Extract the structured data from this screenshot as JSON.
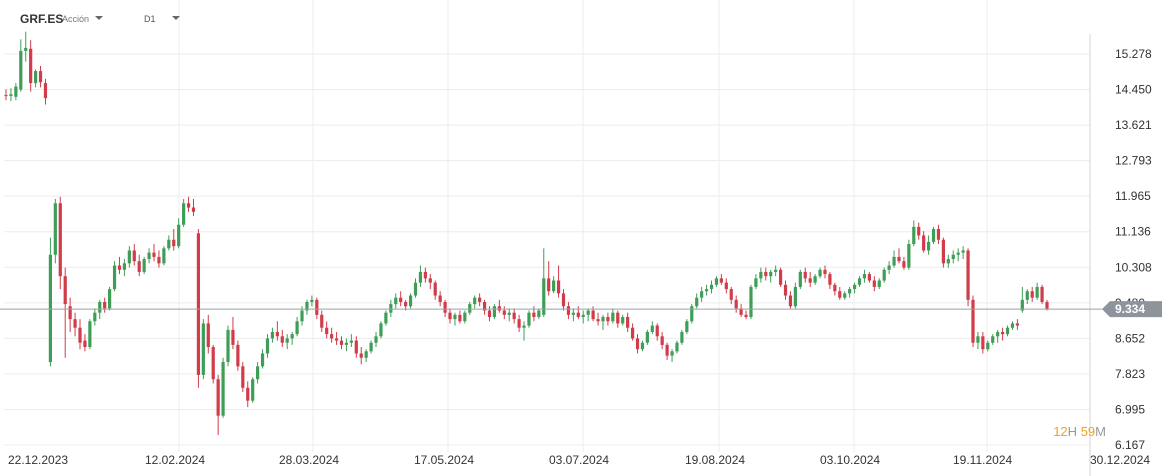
{
  "header": {
    "symbol": "GRF.ES",
    "instrument_type": "Acción",
    "timeframe": "D1"
  },
  "countdown": {
    "hours": "12",
    "hours_unit": "H",
    "minutes": "59",
    "minutes_unit": "M"
  },
  "colors": {
    "up": "#3e9e57",
    "down": "#d23b49",
    "grid": "#ececec",
    "price_line": "#9aa0a6",
    "price_label_bg": "#8d949c"
  },
  "chart_data": {
    "type": "candlestick",
    "y_ticks": [
      "15.278",
      "14.450",
      "13.621",
      "12.793",
      "11.965",
      "11.136",
      "10.308",
      "9.480",
      "8.652",
      "7.823",
      "6.995",
      "6.167"
    ],
    "ylim": [
      6.167,
      15.278
    ],
    "x_ticks": [
      "22.12.2023",
      "12.02.2024",
      "28.03.2024",
      "17.05.2024",
      "03.07.2024",
      "19.08.2024",
      "03.10.2024",
      "19.11.2024",
      "30.12.2024"
    ],
    "current_price": "9.334",
    "candles": [
      [
        14.32,
        14.45,
        14.2,
        14.3
      ],
      [
        14.3,
        14.48,
        14.18,
        14.34
      ],
      [
        14.28,
        14.6,
        14.2,
        14.52
      ],
      [
        14.45,
        15.62,
        14.4,
        15.35
      ],
      [
        15.35,
        15.8,
        15.1,
        15.42
      ],
      [
        15.4,
        15.6,
        14.4,
        14.6
      ],
      [
        14.6,
        14.92,
        14.5,
        14.88
      ],
      [
        14.88,
        15.0,
        14.5,
        14.62
      ],
      [
        14.6,
        14.7,
        14.1,
        14.25
      ],
      [
        8.1,
        11.0,
        8.0,
        10.6
      ],
      [
        10.6,
        11.9,
        10.4,
        11.8
      ],
      [
        11.8,
        11.95,
        9.8,
        10.1
      ],
      [
        10.1,
        10.3,
        8.2,
        9.45
      ],
      [
        9.4,
        9.6,
        8.8,
        9.1
      ],
      [
        9.1,
        9.25,
        8.7,
        8.9
      ],
      [
        8.9,
        9.1,
        8.4,
        8.55
      ],
      [
        8.6,
        8.75,
        8.35,
        8.45
      ],
      [
        8.45,
        9.1,
        8.4,
        9.05
      ],
      [
        9.05,
        9.35,
        8.95,
        9.25
      ],
      [
        9.25,
        9.55,
        9.1,
        9.5
      ],
      [
        9.5,
        9.6,
        9.25,
        9.35
      ],
      [
        9.35,
        9.85,
        9.3,
        9.8
      ],
      [
        9.8,
        10.45,
        9.75,
        10.35
      ],
      [
        10.35,
        10.55,
        10.15,
        10.25
      ],
      [
        10.25,
        10.5,
        10.1,
        10.4
      ],
      [
        10.4,
        10.8,
        10.3,
        10.7
      ],
      [
        10.7,
        10.85,
        10.35,
        10.45
      ],
      [
        10.45,
        10.6,
        10.1,
        10.2
      ],
      [
        10.2,
        10.55,
        10.15,
        10.5
      ],
      [
        10.5,
        10.75,
        10.4,
        10.65
      ],
      [
        10.65,
        10.85,
        10.45,
        10.55
      ],
      [
        10.55,
        10.7,
        10.3,
        10.4
      ],
      [
        10.4,
        10.8,
        10.35,
        10.75
      ],
      [
        10.75,
        11.05,
        10.7,
        10.95
      ],
      [
        10.95,
        11.2,
        10.7,
        10.8
      ],
      [
        10.8,
        11.45,
        10.75,
        11.3
      ],
      [
        11.3,
        11.9,
        11.25,
        11.8
      ],
      [
        11.8,
        11.95,
        11.6,
        11.7
      ],
      [
        11.7,
        11.9,
        11.5,
        11.6
      ],
      [
        11.1,
        11.2,
        7.5,
        7.8
      ],
      [
        7.8,
        9.1,
        7.7,
        9.0
      ],
      [
        9.0,
        9.2,
        8.3,
        8.45
      ],
      [
        8.45,
        8.5,
        7.6,
        7.7
      ],
      [
        7.7,
        7.8,
        6.4,
        6.85
      ],
      [
        6.85,
        8.2,
        6.8,
        8.1
      ],
      [
        8.1,
        8.95,
        8.0,
        8.85
      ],
      [
        8.85,
        9.15,
        8.4,
        8.5
      ],
      [
        8.5,
        8.6,
        7.9,
        8.0
      ],
      [
        8.0,
        8.1,
        7.4,
        7.5
      ],
      [
        7.5,
        7.65,
        7.05,
        7.2
      ],
      [
        7.2,
        7.75,
        7.15,
        7.7
      ],
      [
        7.7,
        8.1,
        7.6,
        8.0
      ],
      [
        8.0,
        8.4,
        7.95,
        8.3
      ],
      [
        8.3,
        8.75,
        8.2,
        8.65
      ],
      [
        8.65,
        8.9,
        8.55,
        8.8
      ],
      [
        8.8,
        9.05,
        8.6,
        8.7
      ],
      [
        8.7,
        8.85,
        8.45,
        8.55
      ],
      [
        8.55,
        8.75,
        8.4,
        8.65
      ],
      [
        8.65,
        8.8,
        8.5,
        8.75
      ],
      [
        8.75,
        9.15,
        8.7,
        9.05
      ],
      [
        9.05,
        9.4,
        8.95,
        9.3
      ],
      [
        9.3,
        9.55,
        9.2,
        9.5
      ],
      [
        9.5,
        9.65,
        9.4,
        9.55
      ],
      [
        9.55,
        9.6,
        9.1,
        9.2
      ],
      [
        9.2,
        9.3,
        8.8,
        8.9
      ],
      [
        8.9,
        9.05,
        8.65,
        8.75
      ],
      [
        8.75,
        8.9,
        8.55,
        8.65
      ],
      [
        8.65,
        8.8,
        8.5,
        8.6
      ],
      [
        8.6,
        8.7,
        8.4,
        8.5
      ],
      [
        8.5,
        8.65,
        8.35,
        8.55
      ],
      [
        8.55,
        8.75,
        8.45,
        8.6
      ],
      [
        8.6,
        8.7,
        8.2,
        8.3
      ],
      [
        8.3,
        8.45,
        8.05,
        8.2
      ],
      [
        8.2,
        8.4,
        8.1,
        8.35
      ],
      [
        8.35,
        8.6,
        8.3,
        8.55
      ],
      [
        8.55,
        8.8,
        8.45,
        8.7
      ],
      [
        8.7,
        9.05,
        8.65,
        9.0
      ],
      [
        9.0,
        9.3,
        8.95,
        9.25
      ],
      [
        9.25,
        9.55,
        9.15,
        9.45
      ],
      [
        9.45,
        9.7,
        9.35,
        9.6
      ],
      [
        9.6,
        9.75,
        9.4,
        9.5
      ],
      [
        9.5,
        9.55,
        9.3,
        9.4
      ],
      [
        9.4,
        9.7,
        9.35,
        9.65
      ],
      [
        9.65,
        10.05,
        9.6,
        9.95
      ],
      [
        9.95,
        10.35,
        9.85,
        10.2
      ],
      [
        10.2,
        10.3,
        9.95,
        10.05
      ],
      [
        10.05,
        10.15,
        9.8,
        9.95
      ],
      [
        9.95,
        10.0,
        9.55,
        9.65
      ],
      [
        9.65,
        9.75,
        9.4,
        9.5
      ],
      [
        9.5,
        9.55,
        9.15,
        9.25
      ],
      [
        9.25,
        9.35,
        9.0,
        9.1
      ],
      [
        9.1,
        9.25,
        8.95,
        9.2
      ],
      [
        9.2,
        9.3,
        9.0,
        9.05
      ],
      [
        9.05,
        9.3,
        9.0,
        9.25
      ],
      [
        9.25,
        9.5,
        9.2,
        9.45
      ],
      [
        9.45,
        9.65,
        9.35,
        9.6
      ],
      [
        9.6,
        9.7,
        9.4,
        9.5
      ],
      [
        9.5,
        9.55,
        9.2,
        9.3
      ],
      [
        9.3,
        9.4,
        9.05,
        9.15
      ],
      [
        9.15,
        9.45,
        9.1,
        9.4
      ],
      [
        9.4,
        9.55,
        9.25,
        9.3
      ],
      [
        9.3,
        9.4,
        9.1,
        9.2
      ],
      [
        9.2,
        9.35,
        9.05,
        9.25
      ],
      [
        9.25,
        9.35,
        9.0,
        9.1
      ],
      [
        9.1,
        9.2,
        8.8,
        8.9
      ],
      [
        8.9,
        9.05,
        8.6,
        8.95
      ],
      [
        8.95,
        9.3,
        8.9,
        9.25
      ],
      [
        9.25,
        9.4,
        9.05,
        9.15
      ],
      [
        9.15,
        9.35,
        9.1,
        9.3
      ],
      [
        9.2,
        10.75,
        9.15,
        10.05
      ],
      [
        10.05,
        10.45,
        9.65,
        9.75
      ],
      [
        9.75,
        10.1,
        9.7,
        10.0
      ],
      [
        10.0,
        10.35,
        9.6,
        9.7
      ],
      [
        9.7,
        9.8,
        9.3,
        9.4
      ],
      [
        9.4,
        9.5,
        9.1,
        9.2
      ],
      [
        9.2,
        9.35,
        9.05,
        9.25
      ],
      [
        9.25,
        9.4,
        9.1,
        9.15
      ],
      [
        9.15,
        9.3,
        9.0,
        9.2
      ],
      [
        9.2,
        9.35,
        9.05,
        9.3
      ],
      [
        9.3,
        9.4,
        9.05,
        9.1
      ],
      [
        9.1,
        9.25,
        8.95,
        9.05
      ],
      [
        9.05,
        9.2,
        8.85,
        9.15
      ],
      [
        9.15,
        9.25,
        8.95,
        9.05
      ],
      [
        9.05,
        9.35,
        9.0,
        9.25
      ],
      [
        9.25,
        9.3,
        8.9,
        9.0
      ],
      [
        9.0,
        9.2,
        8.95,
        9.15
      ],
      [
        9.15,
        9.25,
        8.8,
        8.9
      ],
      [
        8.9,
        9.0,
        8.6,
        8.65
      ],
      [
        8.65,
        8.75,
        8.3,
        8.4
      ],
      [
        8.4,
        8.6,
        8.35,
        8.55
      ],
      [
        8.55,
        8.85,
        8.5,
        8.8
      ],
      [
        8.8,
        9.05,
        8.75,
        8.95
      ],
      [
        8.95,
        9.0,
        8.6,
        8.7
      ],
      [
        8.7,
        8.8,
        8.4,
        8.5
      ],
      [
        8.5,
        8.55,
        8.15,
        8.25
      ],
      [
        8.25,
        8.4,
        8.1,
        8.35
      ],
      [
        8.35,
        8.6,
        8.3,
        8.55
      ],
      [
        8.55,
        8.85,
        8.5,
        8.8
      ],
      [
        8.8,
        9.1,
        8.75,
        9.05
      ],
      [
        9.05,
        9.45,
        9.0,
        9.4
      ],
      [
        9.4,
        9.7,
        9.35,
        9.6
      ],
      [
        9.6,
        9.85,
        9.5,
        9.75
      ],
      [
        9.75,
        9.9,
        9.65,
        9.8
      ],
      [
        9.8,
        10.0,
        9.7,
        9.9
      ],
      [
        9.9,
        10.1,
        9.85,
        10.05
      ],
      [
        10.05,
        10.15,
        9.9,
        9.95
      ],
      [
        9.95,
        10.05,
        9.7,
        9.8
      ],
      [
        9.8,
        9.85,
        9.45,
        9.55
      ],
      [
        9.55,
        9.65,
        9.25,
        9.35
      ],
      [
        9.35,
        9.45,
        9.15,
        9.2
      ],
      [
        9.2,
        9.3,
        9.1,
        9.15
      ],
      [
        9.15,
        9.9,
        9.1,
        9.85
      ],
      [
        9.85,
        10.15,
        9.8,
        10.05
      ],
      [
        10.05,
        10.3,
        9.95,
        10.2
      ],
      [
        10.2,
        10.3,
        10.0,
        10.1
      ],
      [
        10.1,
        10.25,
        9.95,
        10.2
      ],
      [
        10.2,
        10.35,
        10.1,
        10.25
      ],
      [
        10.25,
        10.3,
        9.85,
        9.9
      ],
      [
        9.9,
        10.0,
        9.55,
        9.65
      ],
      [
        9.65,
        9.75,
        9.35,
        9.4
      ],
      [
        9.4,
        9.95,
        9.35,
        9.85
      ],
      [
        9.85,
        10.25,
        9.8,
        10.2
      ],
      [
        10.2,
        10.3,
        9.95,
        10.05
      ],
      [
        10.05,
        10.2,
        9.85,
        9.95
      ],
      [
        9.95,
        10.15,
        9.9,
        10.1
      ],
      [
        10.1,
        10.3,
        10.05,
        10.25
      ],
      [
        10.25,
        10.35,
        10.05,
        10.15
      ],
      [
        10.15,
        10.2,
        9.8,
        9.9
      ],
      [
        9.9,
        9.95,
        9.65,
        9.75
      ],
      [
        9.75,
        9.85,
        9.55,
        9.6
      ],
      [
        9.6,
        9.75,
        9.55,
        9.7
      ],
      [
        9.7,
        9.85,
        9.6,
        9.8
      ],
      [
        9.8,
        9.95,
        9.7,
        9.9
      ],
      [
        9.9,
        10.1,
        9.85,
        10.05
      ],
      [
        10.05,
        10.25,
        9.95,
        10.15
      ],
      [
        10.15,
        10.2,
        9.95,
        10.0
      ],
      [
        10.0,
        10.1,
        9.75,
        9.85
      ],
      [
        9.85,
        10.05,
        9.8,
        10.0
      ],
      [
        10.0,
        10.3,
        9.95,
        10.25
      ],
      [
        10.25,
        10.45,
        10.15,
        10.35
      ],
      [
        10.35,
        10.7,
        10.3,
        10.55
      ],
      [
        10.55,
        10.75,
        10.4,
        10.45
      ],
      [
        10.45,
        10.55,
        10.25,
        10.3
      ],
      [
        10.3,
        10.95,
        10.25,
        10.85
      ],
      [
        10.85,
        11.4,
        10.8,
        11.25
      ],
      [
        11.25,
        11.35,
        10.95,
        11.05
      ],
      [
        11.05,
        11.15,
        10.65,
        10.7
      ],
      [
        10.7,
        11.05,
        10.6,
        10.9
      ],
      [
        10.9,
        11.25,
        10.85,
        11.2
      ],
      [
        11.2,
        11.3,
        10.85,
        10.95
      ],
      [
        10.95,
        11.0,
        10.3,
        10.4
      ],
      [
        10.4,
        10.6,
        10.3,
        10.5
      ],
      [
        10.5,
        10.7,
        10.4,
        10.6
      ],
      [
        10.6,
        10.75,
        10.45,
        10.65
      ],
      [
        10.65,
        10.8,
        10.5,
        10.7
      ],
      [
        10.7,
        10.75,
        9.4,
        9.55
      ],
      [
        9.55,
        9.65,
        8.45,
        8.55
      ],
      [
        8.55,
        8.8,
        8.4,
        8.7
      ],
      [
        8.7,
        8.8,
        8.3,
        8.4
      ],
      [
        8.4,
        8.6,
        8.35,
        8.55
      ],
      [
        8.55,
        8.75,
        8.5,
        8.7
      ],
      [
        8.7,
        8.85,
        8.55,
        8.8
      ],
      [
        8.8,
        8.9,
        8.6,
        8.75
      ],
      [
        8.75,
        8.95,
        8.7,
        8.9
      ],
      [
        8.9,
        9.05,
        8.85,
        9.0
      ],
      [
        9.0,
        9.1,
        8.85,
        8.95
      ],
      [
        9.3,
        9.85,
        9.25,
        9.55
      ],
      [
        9.55,
        9.8,
        9.45,
        9.75
      ],
      [
        9.75,
        9.85,
        9.5,
        9.6
      ],
      [
        9.6,
        9.95,
        9.55,
        9.85
      ],
      [
        9.85,
        9.9,
        9.45,
        9.5
      ],
      [
        9.5,
        9.55,
        9.3,
        9.334
      ]
    ]
  }
}
